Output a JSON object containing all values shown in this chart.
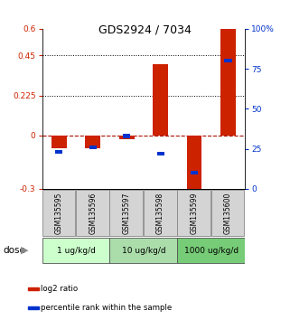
{
  "title": "GDS2924 / 7034",
  "samples": [
    "GSM135595",
    "GSM135596",
    "GSM135597",
    "GSM135598",
    "GSM135599",
    "GSM135600"
  ],
  "log2_ratio": [
    -0.07,
    -0.07,
    -0.02,
    0.4,
    -0.35,
    0.6
  ],
  "percentile_rank": [
    23,
    26,
    33,
    22,
    10,
    80
  ],
  "bar_color": "#cc2200",
  "pct_color": "#0033cc",
  "ylim_left": [
    -0.3,
    0.6
  ],
  "ylim_right": [
    0,
    100
  ],
  "yticks_left": [
    -0.3,
    0,
    0.225,
    0.45,
    0.6
  ],
  "ytick_labels_left": [
    "-0.3",
    "0",
    "0.225",
    "0.45",
    "0.6"
  ],
  "yticks_right": [
    0,
    25,
    50,
    75,
    100
  ],
  "ytick_labels_right": [
    "0",
    "25",
    "50",
    "75",
    "100%"
  ],
  "hlines": [
    0.225,
    0.45
  ],
  "dose_colors": [
    "#ccffcc",
    "#aaddaa",
    "#77cc77"
  ],
  "dose_labels": [
    "1 ug/kg/d",
    "10 ug/kg/d",
    "1000 ug/kg/d"
  ],
  "dose_ranges": [
    [
      0,
      2
    ],
    [
      2,
      4
    ],
    [
      4,
      6
    ]
  ],
  "legend_items": [
    {
      "color": "#cc2200",
      "label": "log2 ratio"
    },
    {
      "color": "#0033cc",
      "label": "percentile rank within the sample"
    }
  ]
}
